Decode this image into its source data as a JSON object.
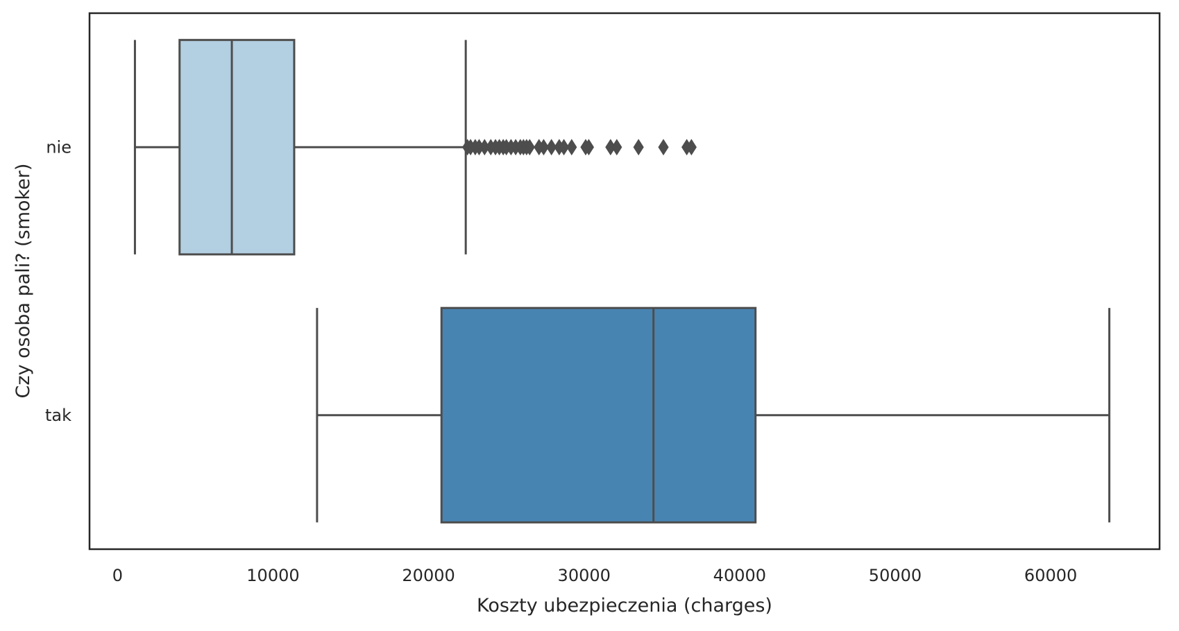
{
  "chart_data": {
    "type": "boxplot",
    "orientation": "horizontal",
    "title": "",
    "xlabel": "Koszty ubezpieczenia (charges)",
    "ylabel": "Czy osoba pali? (smoker)",
    "xlim": [
      -1800,
      67000
    ],
    "xticks": [
      0,
      10000,
      20000,
      30000,
      40000,
      50000,
      60000
    ],
    "xtick_labels": [
      "0",
      "10000",
      "20000",
      "30000",
      "40000",
      "50000",
      "60000"
    ],
    "grid": false,
    "categories": [
      "nie",
      "tak"
    ],
    "boxes": [
      {
        "category": "nie",
        "whisker_low": 1120,
        "q1": 3990,
        "median": 7350,
        "q3": 11360,
        "whisker_high": 22390,
        "outliers": [
          22500,
          22700,
          23000,
          23250,
          23600,
          24000,
          24300,
          24550,
          24800,
          25000,
          25300,
          25600,
          25900,
          26100,
          26300,
          26500,
          27100,
          27400,
          27900,
          28400,
          28700,
          29200,
          30100,
          30300,
          31700,
          32100,
          33500,
          35100,
          36600,
          36900
        ],
        "color": "#b3cfe2"
      },
      {
        "category": "tak",
        "whisker_low": 12830,
        "q1": 20830,
        "median": 34460,
        "q3": 41020,
        "whisker_high": 63770,
        "outliers": [],
        "color": "#4884b2"
      }
    ],
    "line_color": "#4d4d4d",
    "frame_color": "#262626"
  }
}
